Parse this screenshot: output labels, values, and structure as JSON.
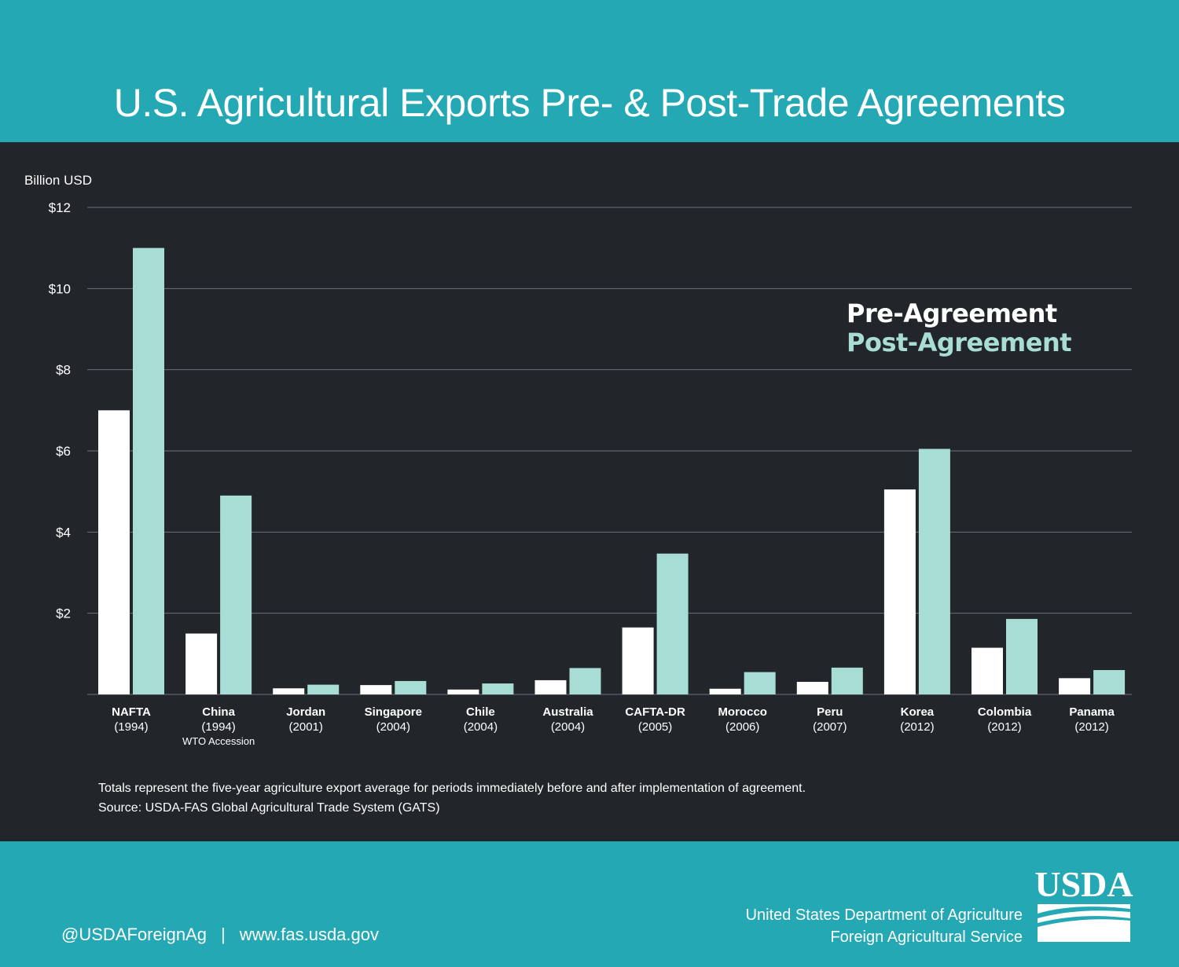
{
  "header": {
    "title": "U.S. Agricultural Exports Pre- & Post-Trade  Agreements"
  },
  "colors": {
    "header_bg": "#24a8b4",
    "chart_bg": "#22262b",
    "pre_bar": "#ffffff",
    "post_bar": "#a8ddd5",
    "grid": "#6d7278"
  },
  "legend": {
    "pre_label": "Pre-Agreement",
    "post_label": "Post-Agreement"
  },
  "chart_data": {
    "type": "bar",
    "title": "U.S. Agricultural Exports Pre- & Post-Trade  Agreements",
    "ylabel": "Billion USD",
    "xlabel": "",
    "ylim": [
      0,
      12
    ],
    "yticks": [
      2,
      4,
      6,
      8,
      10,
      12
    ],
    "ytick_labels": [
      "$2",
      "$4",
      "$6",
      "$8",
      "$10",
      "$12"
    ],
    "grid": true,
    "legend_position": "top-right",
    "categories": [
      {
        "name": "NAFTA",
        "year": "(1994)",
        "note": ""
      },
      {
        "name": "China",
        "year": "(1994)",
        "note": "WTO Accession"
      },
      {
        "name": "Jordan",
        "year": "(2001)",
        "note": ""
      },
      {
        "name": "Singapore",
        "year": "(2004)",
        "note": ""
      },
      {
        "name": "Chile",
        "year": "(2004)",
        "note": ""
      },
      {
        "name": "Australia",
        "year": "(2004)",
        "note": ""
      },
      {
        "name": "CAFTA-DR",
        "year": "(2005)",
        "note": ""
      },
      {
        "name": "Morocco",
        "year": "(2006)",
        "note": ""
      },
      {
        "name": "Peru",
        "year": "(2007)",
        "note": ""
      },
      {
        "name": "Korea",
        "year": "(2012)",
        "note": ""
      },
      {
        "name": "Colombia",
        "year": "(2012)",
        "note": ""
      },
      {
        "name": "Panama",
        "year": "(2012)",
        "note": ""
      }
    ],
    "series": [
      {
        "name": "Pre-Agreement",
        "values": [
          7.0,
          1.5,
          0.15,
          0.23,
          0.12,
          0.35,
          1.65,
          0.14,
          0.31,
          5.05,
          1.15,
          0.4
        ]
      },
      {
        "name": "Post-Agreement",
        "values": [
          11.0,
          4.9,
          0.24,
          0.33,
          0.27,
          0.65,
          3.47,
          0.55,
          0.66,
          6.05,
          1.86,
          0.6
        ]
      }
    ]
  },
  "notes": {
    "line1": "Totals represent the five-year agriculture export average for periods immediately before and after implementation of agreement.",
    "line2": "Source: USDA-FAS Global Agricultural Trade System (GATS)"
  },
  "footer": {
    "twitter": "@USDAForeignAg",
    "separator": "|",
    "website": "www.fas.usda.gov",
    "agency_line1": "United States Department of Agriculture",
    "agency_line2": "Foreign Agricultural Service",
    "logo_text": "USDA",
    "logo_icon": "usda-logo-icon"
  }
}
